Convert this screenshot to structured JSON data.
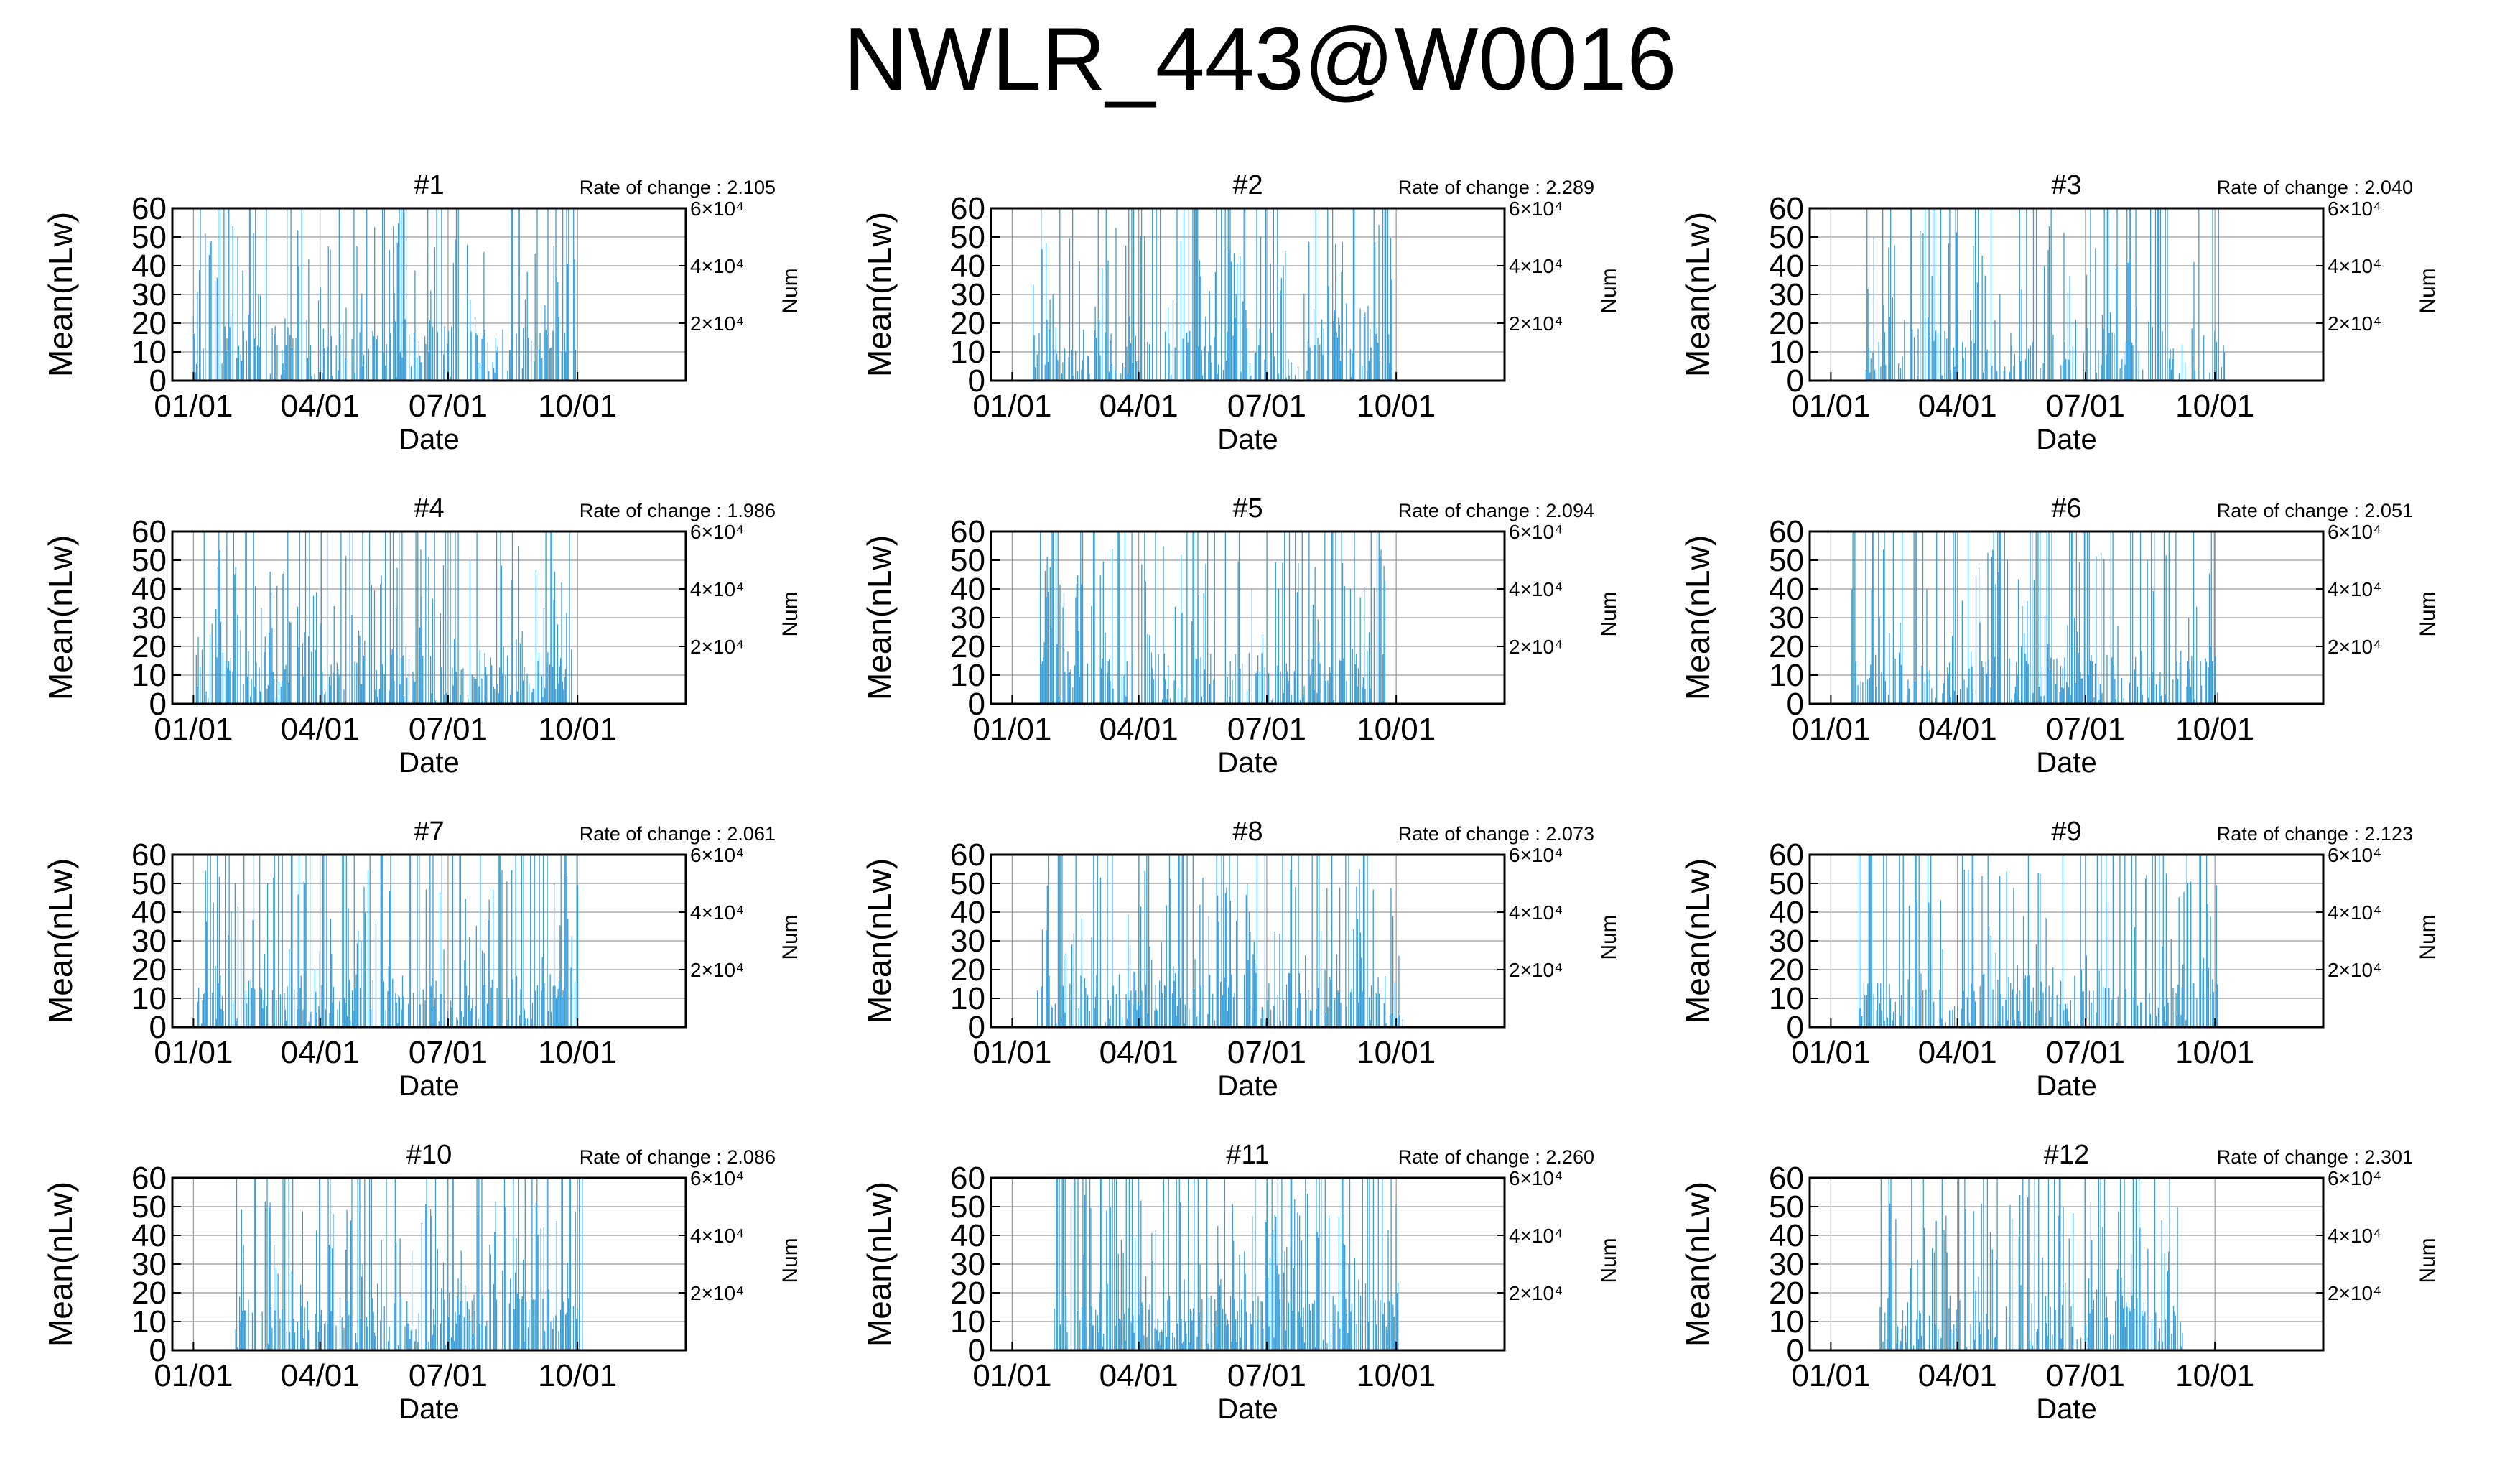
{
  "title": "NWLR_443@W0016",
  "colors": {
    "bars": "#3a9fd8",
    "grid": "#999999",
    "axis": "#000000",
    "background": "#ffffff"
  },
  "chart_data": [
    {
      "type": "bar",
      "title": "#1",
      "rate_text": "Rate of change : 2.105",
      "xlabel": "Date",
      "ylabel": "Mean(nLw)",
      "y2label": "Num",
      "x_ticks": [
        "01/01",
        "04/01",
        "07/01",
        "10/01"
      ],
      "y_ticks": [
        0,
        10,
        20,
        30,
        40,
        50,
        60
      ],
      "y2_ticks": [
        "2×10⁴",
        "4×10⁴",
        "6×10⁴"
      ],
      "ylim": [
        0,
        60
      ],
      "grid": true,
      "x_range_days": [
        -15,
        350
      ],
      "active_days": [
        0,
        275
      ],
      "density": 0.55,
      "seed": 11
    },
    {
      "type": "bar",
      "title": "#2",
      "rate_text": "Rate of change : 2.289",
      "xlabel": "Date",
      "ylabel": "Mean(nLw)",
      "y2label": "Num",
      "x_ticks": [
        "01/01",
        "04/01",
        "07/01",
        "10/01"
      ],
      "y_ticks": [
        0,
        10,
        20,
        30,
        40,
        50,
        60
      ],
      "y2_ticks": [
        "2×10⁴",
        "4×10⁴",
        "6×10⁴"
      ],
      "ylim": [
        0,
        60
      ],
      "grid": true,
      "x_range_days": [
        -15,
        350
      ],
      "active_days": [
        15,
        270
      ],
      "density": 0.6,
      "seed": 23
    },
    {
      "type": "bar",
      "title": "#3",
      "rate_text": "Rate of change : 2.040",
      "xlabel": "Date",
      "ylabel": "Mean(nLw)",
      "y2label": "Num",
      "x_ticks": [
        "01/01",
        "04/01",
        "07/01",
        "10/01"
      ],
      "y_ticks": [
        0,
        10,
        20,
        30,
        40,
        50,
        60
      ],
      "y2_ticks": [
        "2×10⁴",
        "4×10⁴",
        "6×10⁴"
      ],
      "ylim": [
        0,
        60
      ],
      "grid": true,
      "x_range_days": [
        -15,
        350
      ],
      "active_days": [
        25,
        280
      ],
      "density": 0.5,
      "seed": 37
    },
    {
      "type": "bar",
      "title": "#4",
      "rate_text": "Rate of change : 1.986",
      "xlabel": "Date",
      "ylabel": "Mean(nLw)",
      "y2label": "Num",
      "x_ticks": [
        "01/01",
        "04/01",
        "07/01",
        "10/01"
      ],
      "y_ticks": [
        0,
        10,
        20,
        30,
        40,
        50,
        60
      ],
      "y2_ticks": [
        "2×10⁴",
        "4×10⁴",
        "6×10⁴"
      ],
      "ylim": [
        0,
        60
      ],
      "grid": true,
      "x_range_days": [
        -15,
        350
      ],
      "active_days": [
        2,
        270
      ],
      "density": 0.65,
      "seed": 41
    },
    {
      "type": "bar",
      "title": "#5",
      "rate_text": "Rate of change : 2.094",
      "xlabel": "Date",
      "ylabel": "Mean(nLw)",
      "y2label": "Num",
      "x_ticks": [
        "01/01",
        "04/01",
        "07/01",
        "10/01"
      ],
      "y_ticks": [
        0,
        10,
        20,
        30,
        40,
        50,
        60
      ],
      "y2_ticks": [
        "2×10⁴",
        "4×10⁴",
        "6×10⁴"
      ],
      "ylim": [
        0,
        60
      ],
      "grid": true,
      "x_range_days": [
        -15,
        350
      ],
      "active_days": [
        20,
        265
      ],
      "density": 0.55,
      "seed": 53
    },
    {
      "type": "bar",
      "title": "#6",
      "rate_text": "Rate of change : 2.051",
      "xlabel": "Date",
      "ylabel": "Mean(nLw)",
      "y2label": "Num",
      "x_ticks": [
        "01/01",
        "04/01",
        "07/01",
        "10/01"
      ],
      "y_ticks": [
        0,
        10,
        20,
        30,
        40,
        50,
        60
      ],
      "y2_ticks": [
        "2×10⁴",
        "4×10⁴",
        "6×10⁴"
      ],
      "ylim": [
        0,
        60
      ],
      "grid": true,
      "x_range_days": [
        -15,
        350
      ],
      "active_days": [
        15,
        275
      ],
      "density": 0.6,
      "seed": 67
    },
    {
      "type": "bar",
      "title": "#7",
      "rate_text": "Rate of change : 2.061",
      "xlabel": "Date",
      "ylabel": "Mean(nLw)",
      "y2label": "Num",
      "x_ticks": [
        "01/01",
        "04/01",
        "07/01",
        "10/01"
      ],
      "y_ticks": [
        0,
        10,
        20,
        30,
        40,
        50,
        60
      ],
      "y2_ticks": [
        "2×10⁴",
        "4×10⁴",
        "6×10⁴"
      ],
      "ylim": [
        0,
        60
      ],
      "grid": true,
      "x_range_days": [
        -15,
        350
      ],
      "active_days": [
        3,
        275
      ],
      "density": 0.65,
      "seed": 71
    },
    {
      "type": "bar",
      "title": "#8",
      "rate_text": "Rate of change : 2.073",
      "xlabel": "Date",
      "ylabel": "Mean(nLw)",
      "y2label": "Num",
      "x_ticks": [
        "01/01",
        "04/01",
        "07/01",
        "10/01"
      ],
      "y_ticks": [
        0,
        10,
        20,
        30,
        40,
        50,
        60
      ],
      "y2_ticks": [
        "2×10⁴",
        "4×10⁴",
        "6×10⁴"
      ],
      "ylim": [
        0,
        60
      ],
      "grid": true,
      "x_range_days": [
        -15,
        350
      ],
      "active_days": [
        18,
        278
      ],
      "density": 0.6,
      "seed": 83
    },
    {
      "type": "bar",
      "title": "#9",
      "rate_text": "Rate of change : 2.123",
      "xlabel": "Date",
      "ylabel": "Mean(nLw)",
      "y2label": "Num",
      "x_ticks": [
        "01/01",
        "04/01",
        "07/01",
        "10/01"
      ],
      "y_ticks": [
        0,
        10,
        20,
        30,
        40,
        50,
        60
      ],
      "y2_ticks": [
        "2×10⁴",
        "4×10⁴",
        "6×10⁴"
      ],
      "ylim": [
        0,
        60
      ],
      "grid": true,
      "x_range_days": [
        -15,
        350
      ],
      "active_days": [
        20,
        275
      ],
      "density": 0.6,
      "seed": 97
    },
    {
      "type": "bar",
      "title": "#10",
      "rate_text": "Rate of change : 2.086",
      "xlabel": "Date",
      "ylabel": "Mean(nLw)",
      "y2label": "Num",
      "x_ticks": [
        "01/01",
        "04/01",
        "07/01",
        "10/01"
      ],
      "y_ticks": [
        0,
        10,
        20,
        30,
        40,
        50,
        60
      ],
      "y2_ticks": [
        "2×10⁴",
        "4×10⁴",
        "6×10⁴"
      ],
      "ylim": [
        0,
        60
      ],
      "grid": true,
      "x_range_days": [
        -15,
        350
      ],
      "active_days": [
        30,
        278
      ],
      "density": 0.65,
      "seed": 103
    },
    {
      "type": "bar",
      "title": "#11",
      "rate_text": "Rate of change : 2.260",
      "xlabel": "Date",
      "ylabel": "Mean(nLw)",
      "y2label": "Num",
      "x_ticks": [
        "01/01",
        "04/01",
        "07/01",
        "10/01"
      ],
      "y_ticks": [
        0,
        10,
        20,
        30,
        40,
        50,
        60
      ],
      "y2_ticks": [
        "2×10⁴",
        "4×10⁴",
        "6×10⁴"
      ],
      "ylim": [
        0,
        60
      ],
      "grid": true,
      "x_range_days": [
        -15,
        350
      ],
      "active_days": [
        30,
        275
      ],
      "density": 0.7,
      "seed": 113
    },
    {
      "type": "bar",
      "title": "#12",
      "rate_text": "Rate of change : 2.301",
      "xlabel": "Date",
      "ylabel": "Mean(nLw)",
      "y2label": "Num",
      "x_ticks": [
        "01/01",
        "04/01",
        "07/01",
        "10/01"
      ],
      "y_ticks": [
        0,
        10,
        20,
        30,
        40,
        50,
        60
      ],
      "y2_ticks": [
        "2×10⁴",
        "4×10⁴",
        "6×10⁴"
      ],
      "ylim": [
        0,
        60
      ],
      "grid": true,
      "x_range_days": [
        -15,
        350
      ],
      "active_days": [
        35,
        250
      ],
      "density": 0.55,
      "seed": 127
    }
  ]
}
